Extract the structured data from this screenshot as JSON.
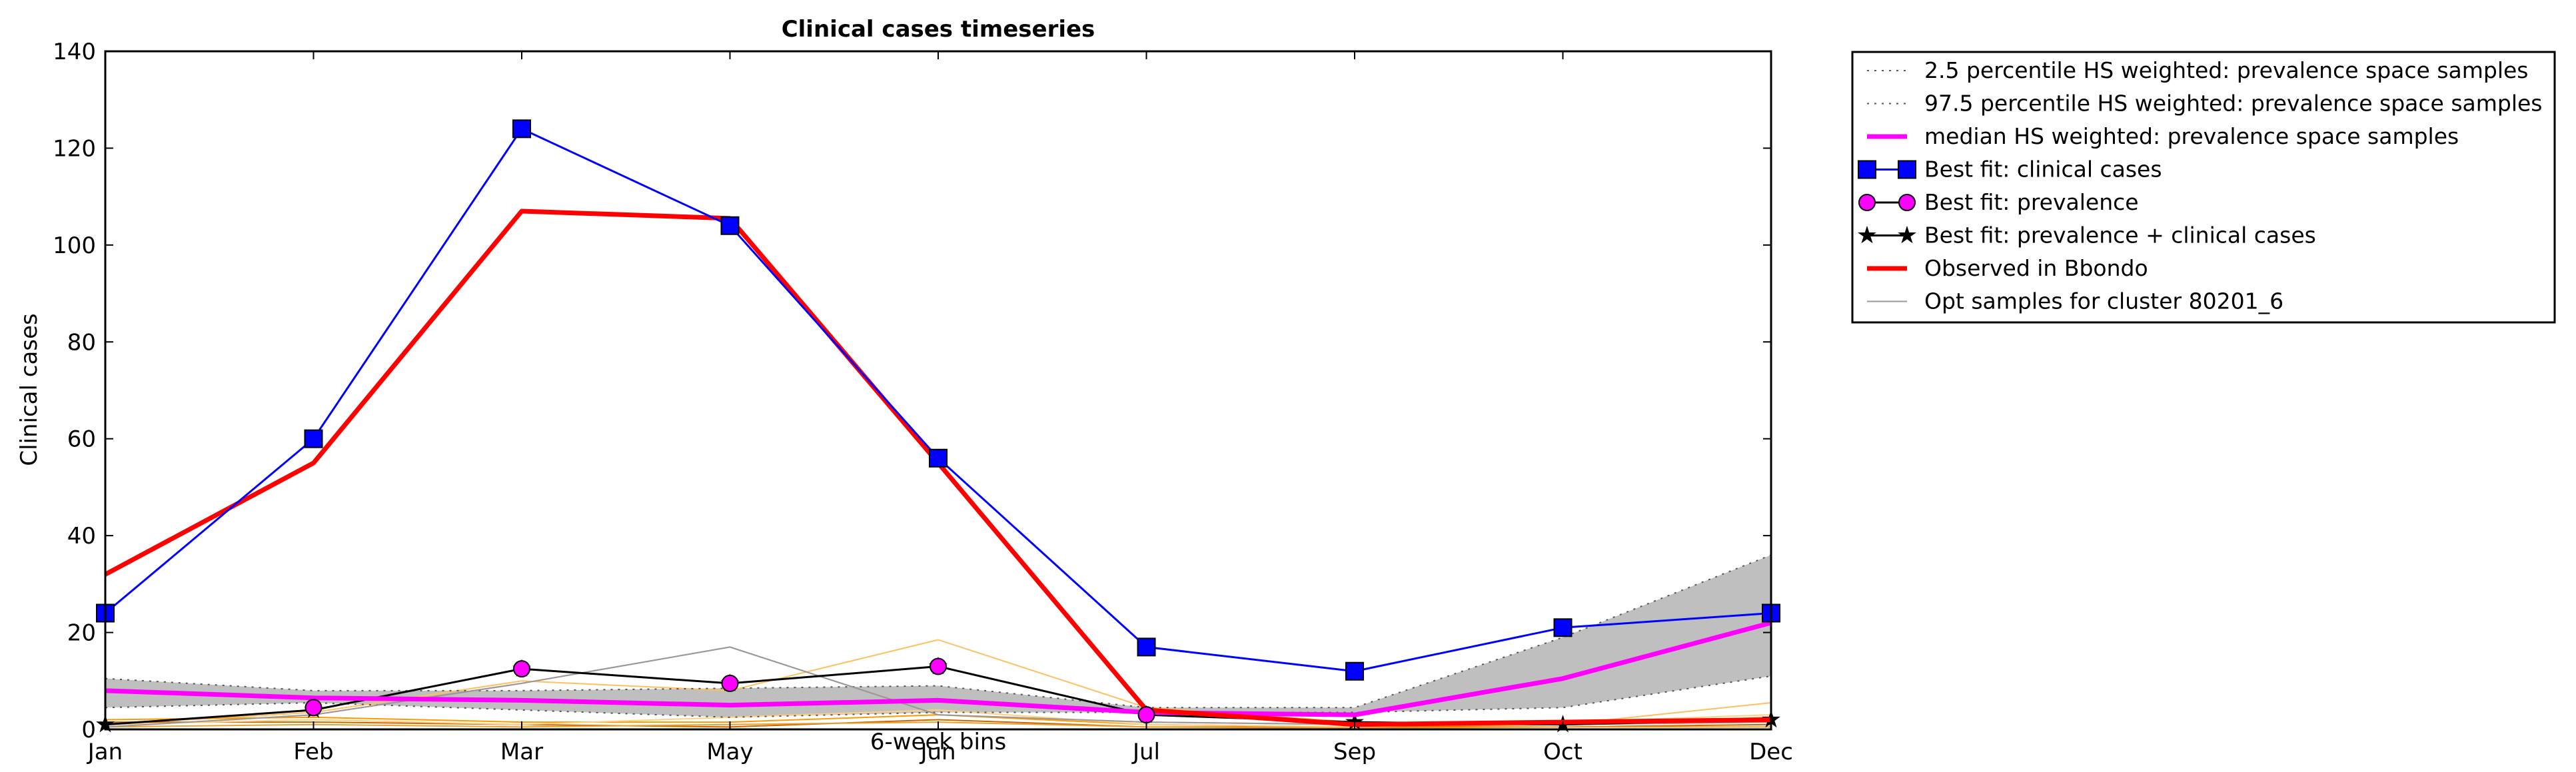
{
  "chart_data": {
    "type": "line",
    "title": "Clinical cases timeseries",
    "xlabel": "6-week bins",
    "ylabel": "Clinical cases",
    "categories": [
      "Jan",
      "Feb",
      "Mar",
      "May",
      "Jun",
      "Jul",
      "Sep",
      "Oct",
      "Dec"
    ],
    "ylim": [
      0,
      140
    ],
    "yticks": [
      0,
      20,
      40,
      60,
      80,
      100,
      120,
      140
    ],
    "grid": false,
    "legend_position": "outside-right",
    "band": {
      "lower": [
        4.5,
        5.5,
        4,
        2.5,
        3.5,
        3.5,
        3.5,
        4.5,
        11
      ],
      "upper": [
        10.5,
        8,
        8,
        8.5,
        9,
        4.5,
        4.5,
        19,
        36
      ],
      "color": "#bfbfbf"
    },
    "series": [
      {
        "name": "2.5 percentile HS weighted: prevalence space samples",
        "values": [
          4.5,
          5.5,
          4,
          2.5,
          3.5,
          3.5,
          3.5,
          4.5,
          11
        ],
        "color": "#555555",
        "style": "dotted",
        "width": 2
      },
      {
        "name": "97.5 percentile HS weighted: prevalence space samples",
        "values": [
          10.5,
          8,
          8,
          8.5,
          9,
          4.5,
          4.5,
          19,
          36
        ],
        "color": "#555555",
        "style": "dotted",
        "width": 2
      },
      {
        "name": "median HS weighted: prevalence space samples",
        "values": [
          8,
          6.5,
          6,
          5,
          6,
          3.5,
          3,
          10.5,
          22
        ],
        "color": "#ff00ff",
        "style": "solid",
        "width": 7
      },
      {
        "name": "Best fit: clinical cases",
        "values": [
          24,
          60,
          124,
          104,
          56,
          17,
          12,
          21,
          24
        ],
        "color": "#0000ff",
        "style": "solid",
        "width": 3,
        "marker": "square",
        "marker_color": "#0000ff"
      },
      {
        "name": "Best fit: prevalence",
        "values": [
          null,
          4.5,
          12.5,
          9.5,
          13,
          3,
          null,
          null,
          null
        ],
        "color": "#000000",
        "style": "none",
        "width": 3,
        "marker": "circle",
        "marker_color": "#ff00ff"
      },
      {
        "name": "Best fit: prevalence + clinical cases",
        "values": [
          1,
          4,
          12.5,
          9.5,
          13,
          3,
          1.5,
          1,
          2
        ],
        "color": "#000000",
        "style": "solid",
        "width": 3,
        "marker": "star",
        "marker_color": "#000000"
      },
      {
        "name": "Observed in Bbondo",
        "values": [
          32,
          55,
          107,
          105.5,
          55,
          4,
          1,
          1.5,
          2
        ],
        "color": "#ff0000",
        "style": "solid",
        "width": 7
      },
      {
        "name": "Opt samples for cluster 80201_6",
        "values": [
          0.5,
          3,
          9.5,
          17,
          3,
          1.5,
          1,
          1,
          1.5
        ],
        "color": "#999999",
        "style": "solid",
        "width": 2
      }
    ],
    "sample_series": [
      {
        "values": [
          0.5,
          3,
          9.5,
          17,
          3,
          1.5,
          1,
          1,
          1.5
        ],
        "color": "#ff8080"
      },
      {
        "values": [
          1,
          3.5,
          10,
          8,
          18.5,
          4.5,
          1.5,
          1,
          5.5
        ],
        "color": "#ffc060"
      },
      {
        "values": [
          2,
          2.5,
          1.5,
          1.5,
          3,
          1,
          0.5,
          1,
          2.5
        ],
        "color": "#ff9900"
      },
      {
        "values": [
          1.5,
          1.5,
          1,
          0.5,
          2,
          0.5,
          0.5,
          0.5,
          1
        ],
        "color": "#cc6600"
      },
      {
        "values": [
          0.5,
          1,
          0.5,
          1,
          1.5,
          0.5,
          0.2,
          0.5,
          0.5
        ],
        "color": "#e8a030"
      },
      {
        "values": [
          1,
          2,
          1,
          2.5,
          4,
          1,
          0.5,
          1.5,
          3
        ],
        "color": "#ffd080"
      }
    ]
  }
}
